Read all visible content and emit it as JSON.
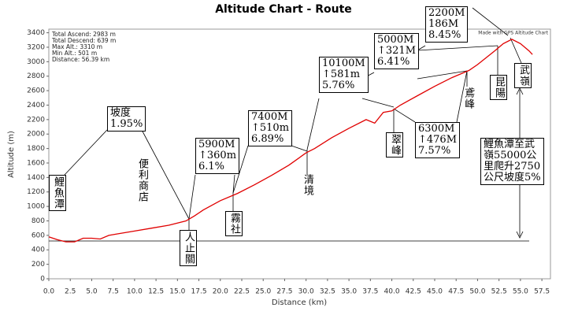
{
  "chart_data": {
    "type": "line",
    "title": "Altitude Chart - Route",
    "x_label": "Distance (km)",
    "y_label": "Altitude (m)",
    "credit": "Made with GPS Altitude Chart",
    "stats": [
      "Total Ascend: 2983 m",
      "Total Descend: 639 m",
      "Max Alt.: 3310 m",
      "Min Alt.: 501 m",
      "Distance: 56.39 km"
    ],
    "color": "#e00000",
    "grid": false,
    "x": [
      0,
      1,
      2,
      3,
      4,
      5,
      6,
      7,
      8,
      10,
      12,
      14,
      16,
      17,
      18,
      20,
      22,
      24,
      26,
      28,
      30,
      31,
      33,
      35,
      37,
      38,
      39,
      40,
      41,
      43,
      45,
      47,
      48,
      49,
      50,
      52,
      53,
      54,
      55,
      56,
      56.4
    ],
    "values": [
      580,
      540,
      510,
      510,
      560,
      560,
      550,
      600,
      620,
      660,
      700,
      740,
      800,
      870,
      950,
      1080,
      1180,
      1300,
      1430,
      1570,
      1740,
      1800,
      1950,
      2080,
      2200,
      2150,
      2300,
      2320,
      2400,
      2530,
      2660,
      2780,
      2830,
      2880,
      2960,
      3150,
      3250,
      3310,
      3250,
      3150,
      3100
    ],
    "xlim": [
      0,
      58.5
    ],
    "ylim": [
      0,
      3450
    ],
    "xticks": [
      {
        "value": 0,
        "label": "0.0"
      },
      2.5,
      {
        "value": 5,
        "label": "5.0"
      },
      7.5,
      {
        "value": 10,
        "label": "10.0"
      },
      12.5,
      {
        "value": 15,
        "label": "15.0"
      },
      17.5,
      {
        "value": 20,
        "label": "20.0"
      },
      22.5,
      {
        "value": 25,
        "label": "25.0"
      },
      27.5,
      {
        "value": 30,
        "label": "30.0"
      },
      32.5,
      {
        "value": 35,
        "label": "35.0"
      },
      37.5,
      {
        "value": 40,
        "label": "40.0"
      },
      42.5,
      {
        "value": 45,
        "label": "45.0"
      },
      47.5,
      {
        "value": 50,
        "label": "50.0"
      },
      52.5,
      {
        "value": 55,
        "label": "55.0"
      },
      57.5
    ],
    "yticks": [
      0,
      200,
      400,
      600,
      800,
      1000,
      1200,
      1400,
      1600,
      1800,
      2000,
      2200,
      2400,
      2600,
      2800,
      3000,
      3200,
      3400
    ],
    "annotations": [
      {
        "text": [
          "鯉魚潭"
        ],
        "vertical": true
      },
      {
        "text": [
          "坡度",
          "1.95%"
        ]
      },
      {
        "text": [
          "便利商店"
        ],
        "vertical": true
      },
      {
        "text": [
          "5900M",
          "↑360m",
          "6.1%"
        ]
      },
      {
        "text": [
          "人止關"
        ],
        "vertical": true
      },
      {
        "text": [
          "7400M",
          "↑510m",
          "6.89%"
        ]
      },
      {
        "text": [
          "霧社"
        ],
        "vertical": true
      },
      {
        "text": [
          "清境"
        ],
        "vertical": true
      },
      {
        "text": [
          "10100M",
          "↑581m",
          "5.76%"
        ]
      },
      {
        "text": [
          "翠峰"
        ],
        "vertical": true
      },
      {
        "text": [
          "6300M",
          "↑476M",
          "7.57%"
        ]
      },
      {
        "text": [
          "鳶峰"
        ],
        "vertical": true
      },
      {
        "text": [
          "5000M",
          "↑321M",
          "6.41%"
        ]
      },
      {
        "text": [
          "昆陽"
        ],
        "vertical": true
      },
      {
        "text": [
          "2200M",
          "186M",
          "8.45%"
        ]
      },
      {
        "text": [
          "武嶺"
        ],
        "vertical": true
      },
      {
        "text": [
          "鯉魚潭至武",
          "嶺55000公",
          "里爬升2750",
          "公尺坡度5%"
        ]
      }
    ]
  }
}
